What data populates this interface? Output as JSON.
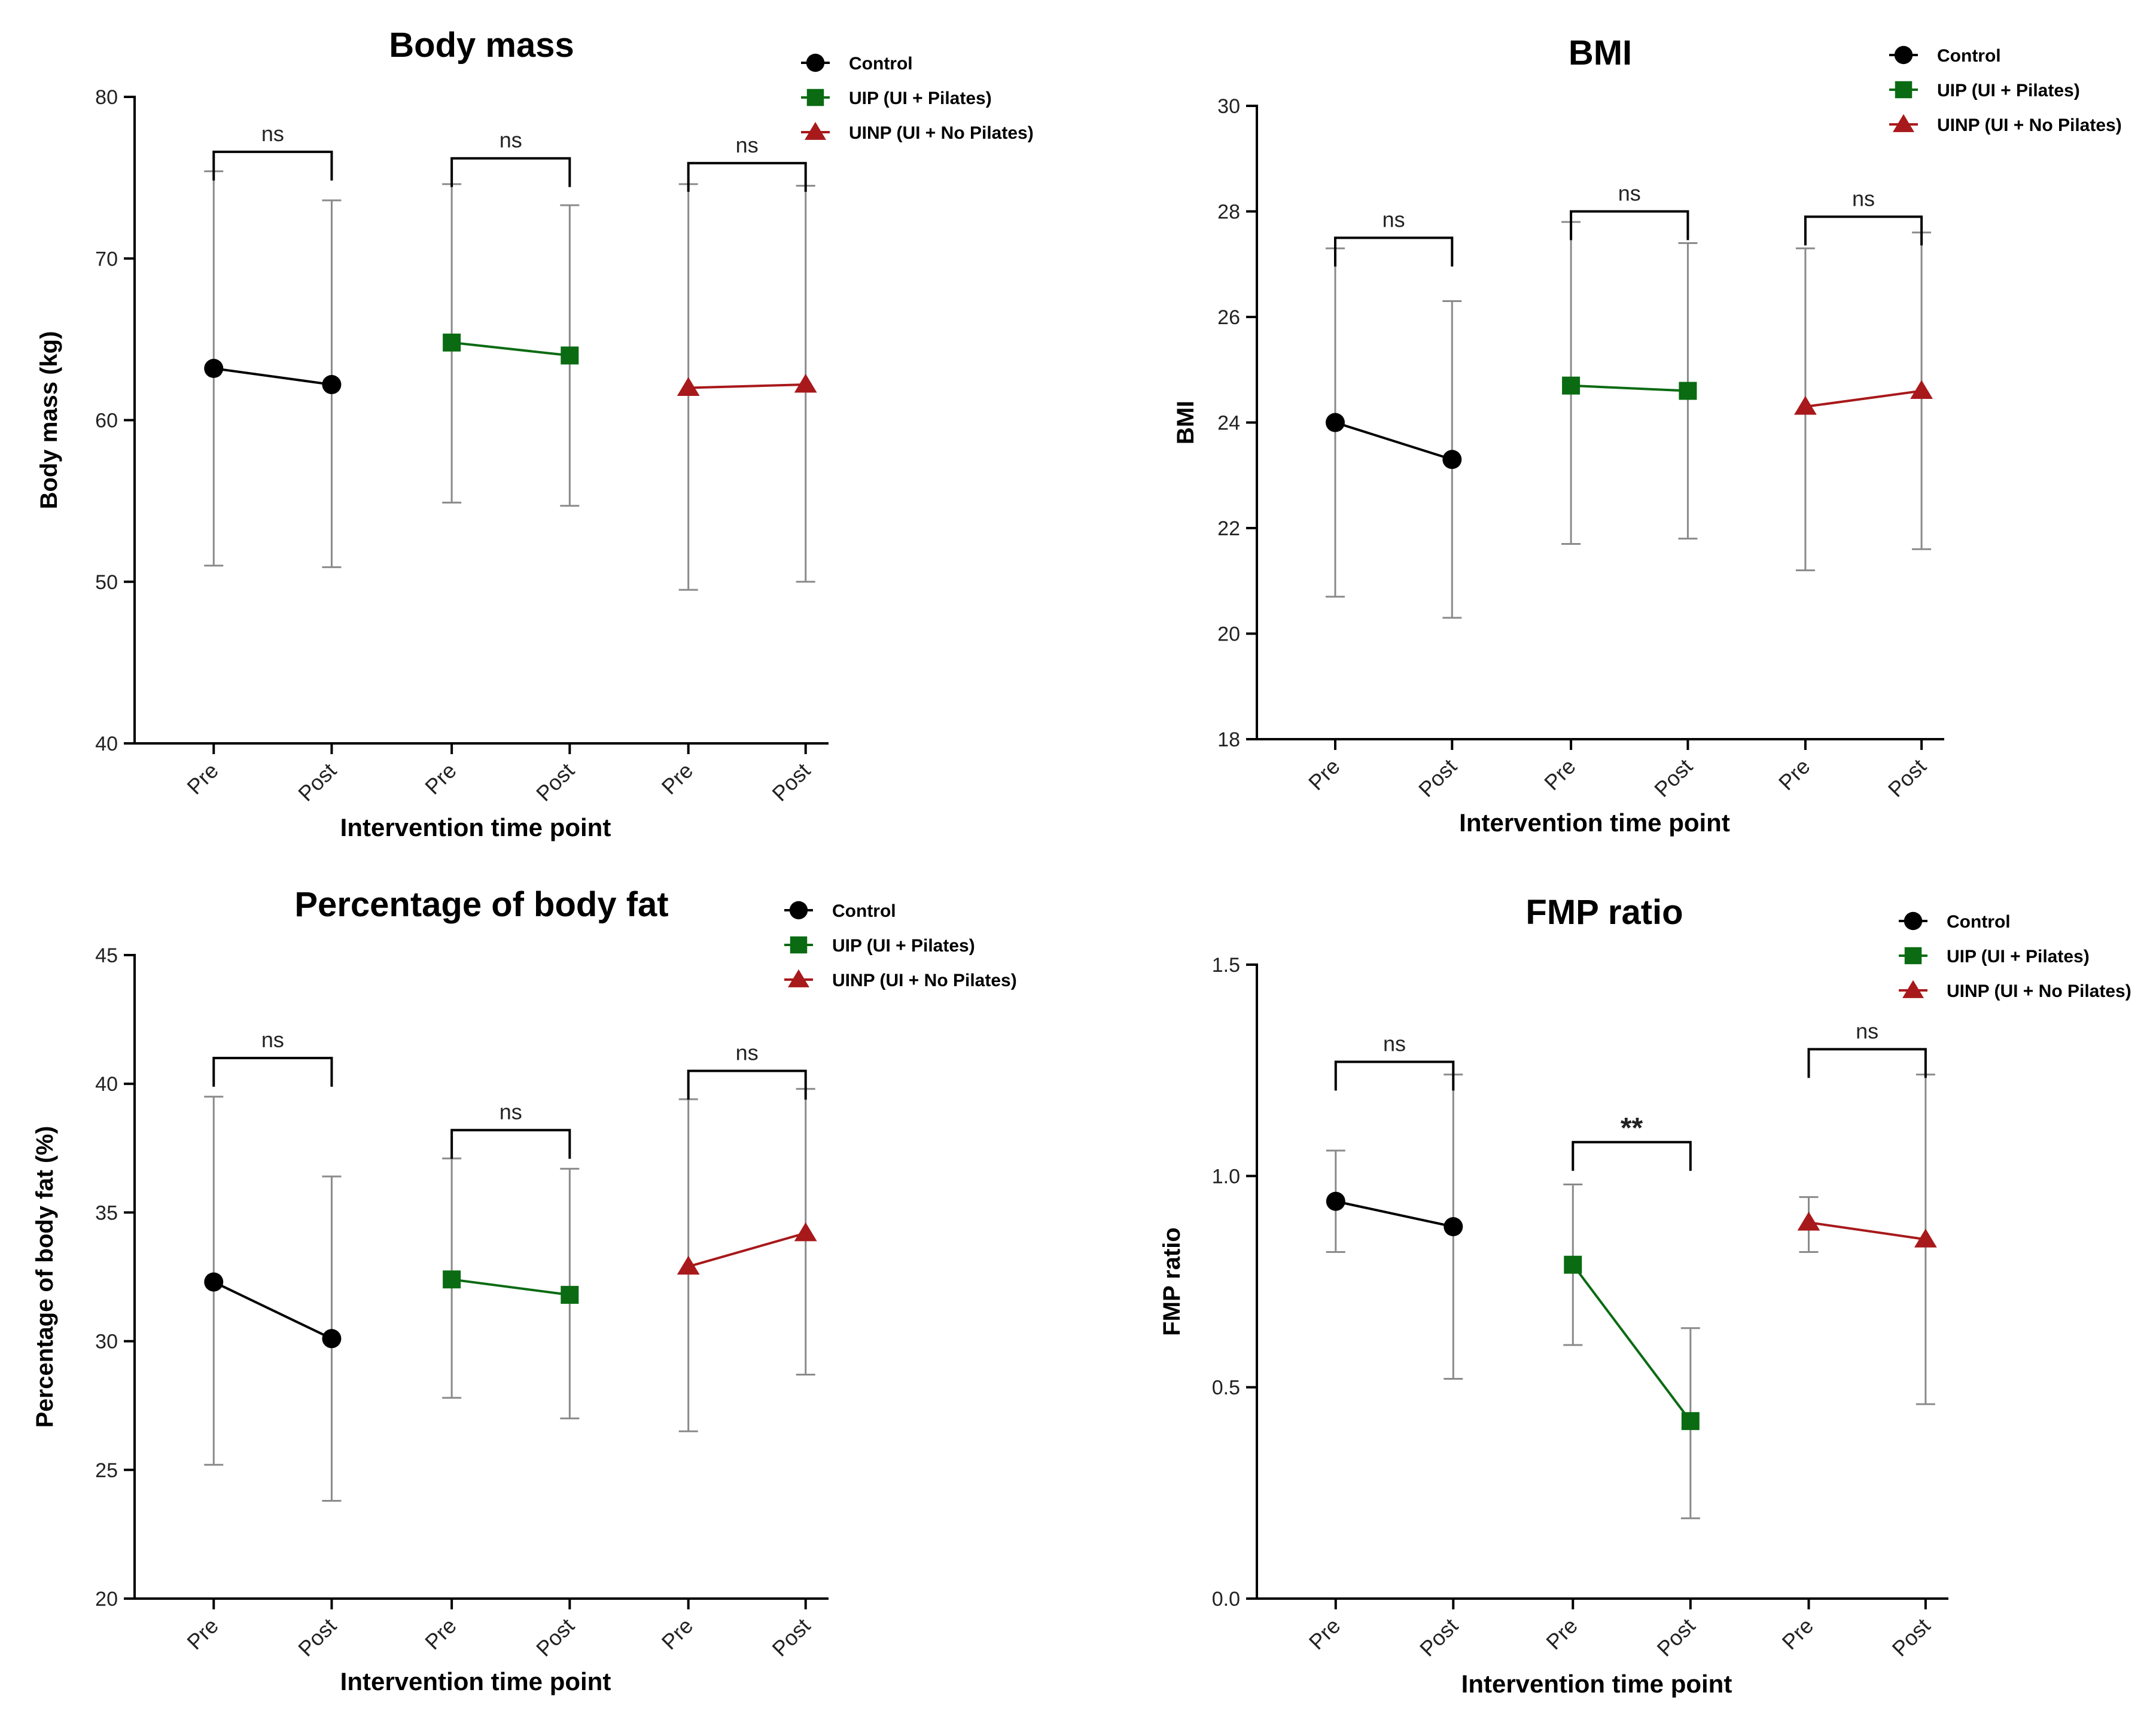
{
  "colors": {
    "Control": "#000000",
    "UIP": "#0a6b12",
    "UINP": "#a8191b",
    "error": "#8a8a8a",
    "axis": "#000000"
  },
  "chart_data": [
    {
      "type": "scatter",
      "title": "Body mass",
      "xlabel": "Intervention time point",
      "ylabel": "Body mass (kg)",
      "ylim": [
        40,
        80
      ],
      "yticks": [
        40,
        50,
        60,
        70,
        80
      ],
      "categories": [
        "Pre",
        "Post",
        "Pre",
        "Post",
        "Pre",
        "Post"
      ],
      "legend_position": "top-right",
      "series": [
        {
          "name": "Control",
          "marker": "circle",
          "color": "#000000",
          "x": [
            0,
            1
          ],
          "values": [
            63.2,
            62.2
          ],
          "err_low": [
            51.0,
            50.9
          ],
          "err_high": [
            75.4,
            73.6
          ]
        },
        {
          "name": "UIP (UI + Pilates)",
          "marker": "square",
          "color": "#0a6b12",
          "x": [
            2,
            3
          ],
          "values": [
            64.8,
            64.0
          ],
          "err_low": [
            54.9,
            54.7
          ],
          "err_high": [
            74.6,
            73.3
          ]
        },
        {
          "name": "UINP (UI + No Pilates)",
          "marker": "triangle",
          "color": "#a8191b",
          "x": [
            4,
            5
          ],
          "values": [
            62.0,
            62.2
          ],
          "err_low": [
            49.5,
            50.0
          ],
          "err_high": [
            74.6,
            74.5
          ]
        }
      ],
      "brackets": [
        {
          "from": 0,
          "to": 1,
          "y": 76.6,
          "label": "ns"
        },
        {
          "from": 2,
          "to": 3,
          "y": 76.2,
          "label": "ns"
        },
        {
          "from": 4,
          "to": 5,
          "y": 75.9,
          "label": "ns"
        }
      ]
    },
    {
      "type": "scatter",
      "title": "BMI",
      "xlabel": "Intervention time point",
      "ylabel": "BMI",
      "ylim": [
        18,
        30
      ],
      "yticks": [
        18,
        20,
        22,
        24,
        26,
        28,
        30
      ],
      "categories": [
        "Pre",
        "Post",
        "Pre",
        "Post",
        "Pre",
        "Post"
      ],
      "legend_position": "top-right",
      "series": [
        {
          "name": "Control",
          "marker": "circle",
          "color": "#000000",
          "x": [
            0,
            1
          ],
          "values": [
            24.0,
            23.3
          ],
          "err_low": [
            20.7,
            20.3
          ],
          "err_high": [
            27.3,
            26.3
          ]
        },
        {
          "name": "UIP (UI + Pilates)",
          "marker": "square",
          "color": "#0a6b12",
          "x": [
            2,
            3
          ],
          "values": [
            24.7,
            24.6
          ],
          "err_low": [
            21.7,
            21.8
          ],
          "err_high": [
            27.8,
            27.4
          ]
        },
        {
          "name": "UINP (UI + No Pilates)",
          "marker": "triangle",
          "color": "#a8191b",
          "x": [
            4,
            5
          ],
          "values": [
            24.3,
            24.6
          ],
          "err_low": [
            21.2,
            21.6
          ],
          "err_high": [
            27.3,
            27.6
          ]
        }
      ],
      "brackets": [
        {
          "from": 0,
          "to": 1,
          "y": 27.5,
          "label": "ns"
        },
        {
          "from": 2,
          "to": 3,
          "y": 28.0,
          "label": "ns"
        },
        {
          "from": 4,
          "to": 5,
          "y": 27.9,
          "label": "ns"
        }
      ]
    },
    {
      "type": "scatter",
      "title": "Percentage of body fat",
      "xlabel": "Intervention time point",
      "ylabel": "Percentage of body fat (%)",
      "ylim": [
        20,
        45
      ],
      "yticks": [
        20,
        25,
        30,
        35,
        40,
        45
      ],
      "categories": [
        "Pre",
        "Post",
        "Pre",
        "Post",
        "Pre",
        "Post"
      ],
      "legend_position": "top-right",
      "series": [
        {
          "name": "Control",
          "marker": "circle",
          "color": "#000000",
          "x": [
            0,
            1
          ],
          "values": [
            32.3,
            30.1
          ],
          "err_low": [
            25.2,
            23.8
          ],
          "err_high": [
            39.5,
            36.4
          ]
        },
        {
          "name": "UIP (UI + Pilates)",
          "marker": "square",
          "color": "#0a6b12",
          "x": [
            2,
            3
          ],
          "values": [
            32.4,
            31.8
          ],
          "err_low": [
            27.8,
            27.0
          ],
          "err_high": [
            37.1,
            36.7
          ]
        },
        {
          "name": "UINP (UI + No Pilates)",
          "marker": "triangle",
          "color": "#a8191b",
          "x": [
            4,
            5
          ],
          "values": [
            32.9,
            34.2
          ],
          "err_low": [
            26.5,
            28.7
          ],
          "err_high": [
            39.4,
            39.8
          ]
        }
      ],
      "brackets": [
        {
          "from": 0,
          "to": 1,
          "y": 41.0,
          "label": "ns"
        },
        {
          "from": 2,
          "to": 3,
          "y": 38.2,
          "label": "ns"
        },
        {
          "from": 4,
          "to": 5,
          "y": 40.5,
          "label": "ns"
        }
      ]
    },
    {
      "type": "scatter",
      "title": "FMP ratio",
      "xlabel": "Intervention time point",
      "ylabel": "FMP ratio",
      "ylim": [
        0.0,
        1.5
      ],
      "yticks": [
        0.0,
        0.5,
        1.0,
        1.5
      ],
      "ytick_labels": [
        "0.0",
        "0.5",
        "1.0",
        "1.5"
      ],
      "categories": [
        "Pre",
        "Post",
        "Pre",
        "Post",
        "Pre",
        "Post"
      ],
      "legend_position": "top-right",
      "series": [
        {
          "name": "Control",
          "marker": "circle",
          "color": "#000000",
          "x": [
            0,
            1
          ],
          "values": [
            0.94,
            0.88
          ],
          "err_low": [
            0.82,
            0.52
          ],
          "err_high": [
            1.06,
            1.24
          ]
        },
        {
          "name": "UIP (UI + Pilates)",
          "marker": "square",
          "color": "#0a6b12",
          "x": [
            2,
            3
          ],
          "values": [
            0.79,
            0.42
          ],
          "err_low": [
            0.6,
            0.19
          ],
          "err_high": [
            0.98,
            0.64
          ]
        },
        {
          "name": "UINP (UI + No Pilates)",
          "marker": "triangle",
          "color": "#a8191b",
          "x": [
            4,
            5
          ],
          "values": [
            0.89,
            0.85
          ],
          "err_low": [
            0.82,
            0.46
          ],
          "err_high": [
            0.95,
            1.24
          ]
        }
      ],
      "brackets": [
        {
          "from": 0,
          "to": 1,
          "y": 1.27,
          "label": "ns"
        },
        {
          "from": 2,
          "to": 3,
          "y": 1.08,
          "label": "**"
        },
        {
          "from": 4,
          "to": 5,
          "y": 1.3,
          "label": "ns"
        }
      ]
    }
  ]
}
